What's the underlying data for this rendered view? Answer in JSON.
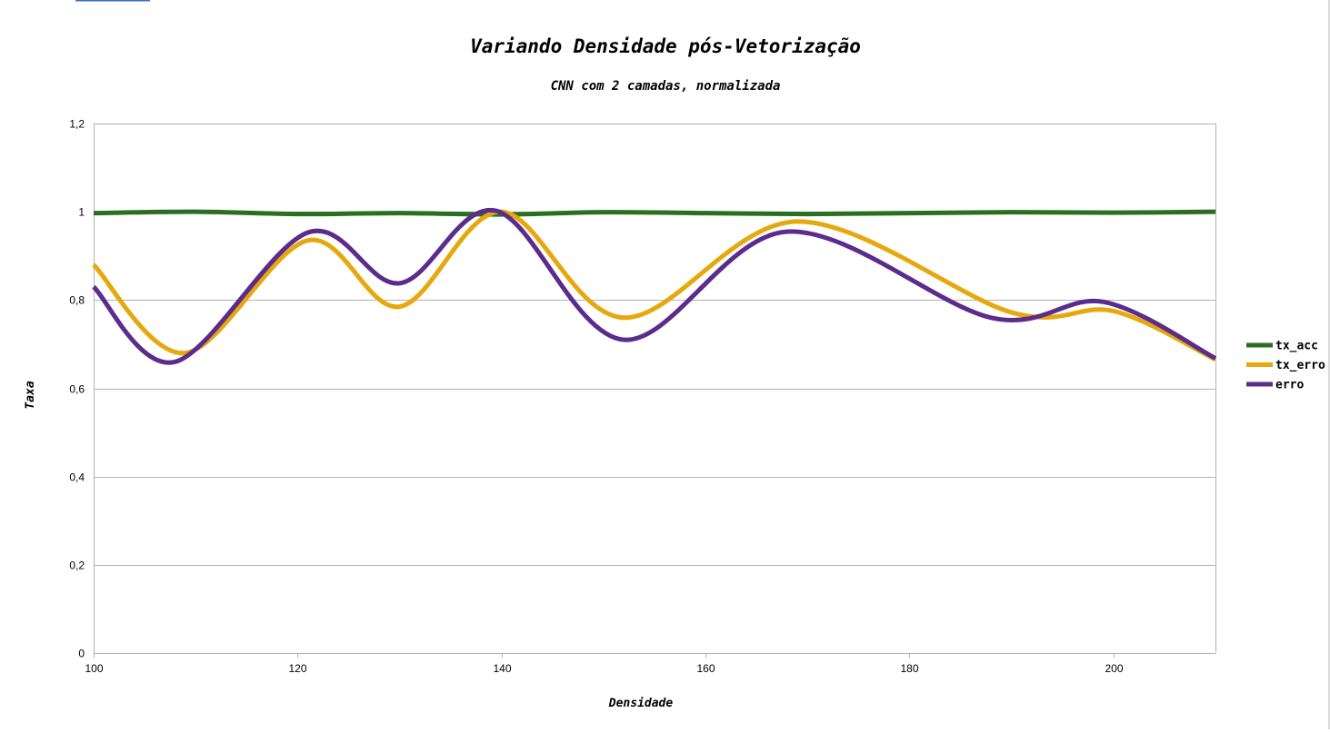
{
  "chart_data": {
    "type": "line",
    "title": "Variando Densidade pós-Vetorização",
    "subtitle": "CNN com 2 camadas, normalizada",
    "xlabel": "Densidade",
    "ylabel": "Taxa",
    "xlim": [
      100,
      210
    ],
    "ylim": [
      0,
      1.2
    ],
    "x_ticks": [
      100,
      120,
      140,
      160,
      180,
      200
    ],
    "y_ticks": [
      0,
      0.2,
      0.4,
      0.6,
      0.8,
      1,
      1.2
    ],
    "y_tick_labels": [
      "0",
      "0,2",
      "0,4",
      "0,6",
      "0,8",
      "1",
      "1,2"
    ],
    "grid": "horizontal",
    "legend_position": "right",
    "smooth": true,
    "series": [
      {
        "name": "tx_acc",
        "color": "#2a6e22",
        "x": [
          100,
          110,
          120,
          130,
          140,
          150,
          160,
          170,
          180,
          190,
          200,
          210
        ],
        "y": [
          0.997,
          1.0,
          0.995,
          0.997,
          0.994,
          0.999,
          0.997,
          0.995,
          0.997,
          0.999,
          0.998,
          1.0
        ]
      },
      {
        "name": "tx_erro",
        "color": "#e6a80c",
        "x": [
          100,
          109,
          121,
          130,
          140,
          152,
          169,
          190,
          200,
          210
        ],
        "y": [
          0.88,
          0.68,
          0.935,
          0.785,
          1.0,
          0.76,
          0.978,
          0.772,
          0.775,
          0.665
        ]
      },
      {
        "name": "erro",
        "color": "#5b2c8c",
        "x": [
          100,
          108,
          121,
          130,
          139.5,
          152,
          168,
          188,
          199,
          210
        ],
        "y": [
          0.83,
          0.66,
          0.953,
          0.838,
          1.002,
          0.71,
          0.955,
          0.76,
          0.796,
          0.668
        ]
      }
    ]
  }
}
